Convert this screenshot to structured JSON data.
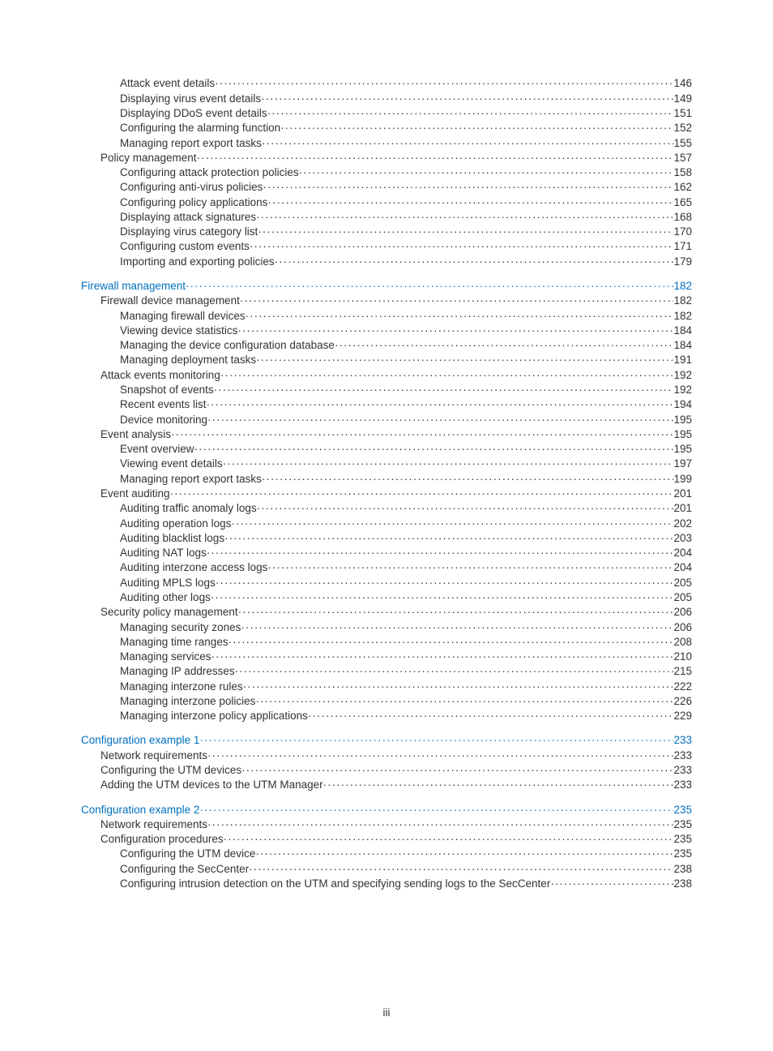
{
  "colors": {
    "text": "#333333",
    "link": "#0070c0",
    "background": "#ffffff"
  },
  "typography": {
    "font_family": "Arial, Helvetica, sans-serif",
    "font_size_pt": 10,
    "line_height": 1.0
  },
  "page_number": "iii",
  "toc": [
    {
      "level": 3,
      "link": false,
      "gap_before": false,
      "label": "Attack event details",
      "page": "146"
    },
    {
      "level": 3,
      "link": false,
      "gap_before": false,
      "label": "Displaying virus event details",
      "page": "149"
    },
    {
      "level": 3,
      "link": false,
      "gap_before": false,
      "label": "Displaying DDoS event details",
      "page": "151"
    },
    {
      "level": 3,
      "link": false,
      "gap_before": false,
      "label": "Configuring the alarming function",
      "page": "152"
    },
    {
      "level": 3,
      "link": false,
      "gap_before": false,
      "label": "Managing report export tasks",
      "page": "155"
    },
    {
      "level": 2,
      "link": false,
      "gap_before": false,
      "label": "Policy management",
      "page": "157"
    },
    {
      "level": 3,
      "link": false,
      "gap_before": false,
      "label": "Configuring attack protection policies",
      "page": "158"
    },
    {
      "level": 3,
      "link": false,
      "gap_before": false,
      "label": "Configuring anti-virus policies",
      "page": "162"
    },
    {
      "level": 3,
      "link": false,
      "gap_before": false,
      "label": "Configuring policy applications",
      "page": "165"
    },
    {
      "level": 3,
      "link": false,
      "gap_before": false,
      "label": "Displaying attack signatures",
      "page": "168"
    },
    {
      "level": 3,
      "link": false,
      "gap_before": false,
      "label": "Displaying virus category list",
      "page": "170"
    },
    {
      "level": 3,
      "link": false,
      "gap_before": false,
      "label": "Configuring custom events",
      "page": "171"
    },
    {
      "level": 3,
      "link": false,
      "gap_before": false,
      "label": "Importing and exporting policies",
      "page": "179"
    },
    {
      "level": 1,
      "link": true,
      "gap_before": true,
      "label": "Firewall management",
      "page": "182"
    },
    {
      "level": 2,
      "link": false,
      "gap_before": false,
      "label": "Firewall device management",
      "page": "182"
    },
    {
      "level": 3,
      "link": false,
      "gap_before": false,
      "label": "Managing firewall devices",
      "page": "182"
    },
    {
      "level": 3,
      "link": false,
      "gap_before": false,
      "label": "Viewing device statistics",
      "page": "184"
    },
    {
      "level": 3,
      "link": false,
      "gap_before": false,
      "label": "Managing the device configuration database",
      "page": "184"
    },
    {
      "level": 3,
      "link": false,
      "gap_before": false,
      "label": "Managing deployment tasks",
      "page": "191"
    },
    {
      "level": 2,
      "link": false,
      "gap_before": false,
      "label": "Attack events monitoring",
      "page": "192"
    },
    {
      "level": 3,
      "link": false,
      "gap_before": false,
      "label": "Snapshot of events",
      "page": "192"
    },
    {
      "level": 3,
      "link": false,
      "gap_before": false,
      "label": "Recent events list",
      "page": "194"
    },
    {
      "level": 3,
      "link": false,
      "gap_before": false,
      "label": "Device monitoring",
      "page": "195"
    },
    {
      "level": 2,
      "link": false,
      "gap_before": false,
      "label": "Event analysis",
      "page": "195"
    },
    {
      "level": 3,
      "link": false,
      "gap_before": false,
      "label": "Event overview",
      "page": "195"
    },
    {
      "level": 3,
      "link": false,
      "gap_before": false,
      "label": "Viewing event details",
      "page": "197"
    },
    {
      "level": 3,
      "link": false,
      "gap_before": false,
      "label": "Managing report export tasks",
      "page": "199"
    },
    {
      "level": 2,
      "link": false,
      "gap_before": false,
      "label": "Event auditing",
      "page": "201"
    },
    {
      "level": 3,
      "link": false,
      "gap_before": false,
      "label": "Auditing traffic anomaly logs",
      "page": "201"
    },
    {
      "level": 3,
      "link": false,
      "gap_before": false,
      "label": "Auditing operation logs",
      "page": "202"
    },
    {
      "level": 3,
      "link": false,
      "gap_before": false,
      "label": "Auditing blacklist logs",
      "page": "203"
    },
    {
      "level": 3,
      "link": false,
      "gap_before": false,
      "label": "Auditing NAT logs",
      "page": "204"
    },
    {
      "level": 3,
      "link": false,
      "gap_before": false,
      "label": "Auditing interzone access logs",
      "page": "204"
    },
    {
      "level": 3,
      "link": false,
      "gap_before": false,
      "label": "Auditing MPLS logs",
      "page": "205"
    },
    {
      "level": 3,
      "link": false,
      "gap_before": false,
      "label": "Auditing other logs",
      "page": "205"
    },
    {
      "level": 2,
      "link": false,
      "gap_before": false,
      "label": "Security policy management",
      "page": "206"
    },
    {
      "level": 3,
      "link": false,
      "gap_before": false,
      "label": "Managing security zones",
      "page": "206"
    },
    {
      "level": 3,
      "link": false,
      "gap_before": false,
      "label": "Managing time ranges",
      "page": "208"
    },
    {
      "level": 3,
      "link": false,
      "gap_before": false,
      "label": "Managing services",
      "page": "210"
    },
    {
      "level": 3,
      "link": false,
      "gap_before": false,
      "label": "Managing IP addresses",
      "page": "215"
    },
    {
      "level": 3,
      "link": false,
      "gap_before": false,
      "label": "Managing interzone rules",
      "page": "222"
    },
    {
      "level": 3,
      "link": false,
      "gap_before": false,
      "label": "Managing interzone policies",
      "page": "226"
    },
    {
      "level": 3,
      "link": false,
      "gap_before": false,
      "label": "Managing interzone policy applications",
      "page": "229"
    },
    {
      "level": 1,
      "link": true,
      "gap_before": true,
      "label": "Configuration example 1",
      "page": "233"
    },
    {
      "level": 2,
      "link": false,
      "gap_before": false,
      "label": "Network requirements",
      "page": "233"
    },
    {
      "level": 2,
      "link": false,
      "gap_before": false,
      "label": "Configuring the UTM devices",
      "page": "233"
    },
    {
      "level": 2,
      "link": false,
      "gap_before": false,
      "label": "Adding the UTM devices to the UTM Manager",
      "page": "233"
    },
    {
      "level": 1,
      "link": true,
      "gap_before": true,
      "label": "Configuration example 2",
      "page": "235"
    },
    {
      "level": 2,
      "link": false,
      "gap_before": false,
      "label": "Network requirements",
      "page": "235"
    },
    {
      "level": 2,
      "link": false,
      "gap_before": false,
      "label": "Configuration procedures",
      "page": "235"
    },
    {
      "level": 3,
      "link": false,
      "gap_before": false,
      "label": "Configuring the UTM device",
      "page": "235"
    },
    {
      "level": 3,
      "link": false,
      "gap_before": false,
      "label": "Configuring the SecCenter",
      "page": "238"
    },
    {
      "level": 3,
      "link": false,
      "gap_before": false,
      "label": "Configuring intrusion detection on the UTM and specifying sending logs to the SecCenter",
      "page": "238"
    }
  ]
}
